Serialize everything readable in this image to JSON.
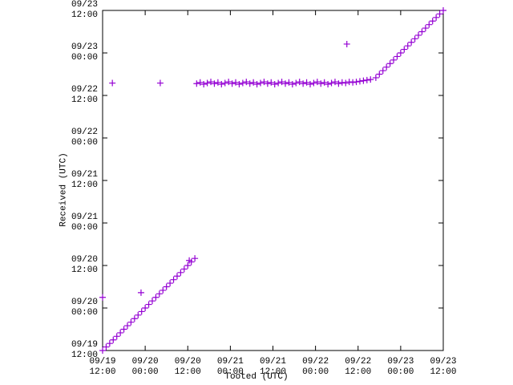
{
  "chart_data": {
    "type": "scatter",
    "x_label": "Tooted (UTC)",
    "y_label": "Received (UTC)",
    "color": "#9400d3",
    "xlim": [
      "09/19\n12:00",
      "09/23\n12:00"
    ],
    "ylim": [
      "09/19\n12:00",
      "09/23\n12:00"
    ],
    "xticks": [
      "09/19\n12:00",
      "09/20\n00:00",
      "09/20\n12:00",
      "09/21\n00:00",
      "09/21\n12:00",
      "09/22\n00:00",
      "09/22\n12:00",
      "09/23\n00:00",
      "09/23\n12:00"
    ],
    "yticks": [
      "09/19\n12:00",
      "09/20\n00:00",
      "09/20\n12:00",
      "09/21\n00:00",
      "09/21\n12:00",
      "09/22\n00:00",
      "09/22\n12:00",
      "09/23\n00:00",
      "09/23\n12:00"
    ],
    "x": [
      "09/19 12:00",
      "09/19 14:45",
      "09/20 04:15",
      "09/19 22:50",
      "09/22 08:50",
      "09/20 12:25",
      "09/19 12:00",
      "09/19 13:00",
      "09/19 14:00",
      "09/19 15:00",
      "09/19 16:00",
      "09/19 17:00",
      "09/19 18:00",
      "09/19 19:00",
      "09/19 20:00",
      "09/19 21:00",
      "09/19 22:00",
      "09/19 23:00",
      "09/20 00:00",
      "09/20 01:00",
      "09/20 02:00",
      "09/20 03:00",
      "09/20 04:00",
      "09/20 05:00",
      "09/20 06:00",
      "09/20 07:00",
      "09/20 08:00",
      "09/20 09:00",
      "09/20 10:00",
      "09/20 11:00",
      "09/20 12:00",
      "09/20 13:00",
      "09/20 14:00",
      "09/20 14:30",
      "09/20 15:30",
      "09/20 16:30",
      "09/20 17:30",
      "09/20 18:30",
      "09/20 19:30",
      "09/20 20:30",
      "09/20 21:30",
      "09/20 22:30",
      "09/20 23:30",
      "09/21 00:30",
      "09/21 01:30",
      "09/21 02:30",
      "09/21 03:30",
      "09/21 04:30",
      "09/21 05:30",
      "09/21 06:30",
      "09/21 07:30",
      "09/21 08:30",
      "09/21 09:30",
      "09/21 10:30",
      "09/21 11:30",
      "09/21 12:30",
      "09/21 13:30",
      "09/21 14:30",
      "09/21 15:30",
      "09/21 16:30",
      "09/21 17:30",
      "09/21 18:30",
      "09/21 19:30",
      "09/21 20:30",
      "09/21 21:30",
      "09/21 22:30",
      "09/21 23:30",
      "09/22 00:30",
      "09/22 01:30",
      "09/22 02:30",
      "09/22 03:30",
      "09/22 04:30",
      "09/22 05:30",
      "09/22 06:30",
      "09/22 07:30",
      "09/22 08:30",
      "09/22 09:30",
      "09/22 10:30",
      "09/22 11:30",
      "09/22 12:30",
      "09/22 13:30",
      "09/22 14:30",
      "09/22 15:30",
      "09/22 17:00",
      "09/22 18:00",
      "09/22 19:00",
      "09/22 20:00",
      "09/22 21:00",
      "09/22 22:00",
      "09/22 23:00",
      "09/23 00:00",
      "09/23 01:00",
      "09/23 02:00",
      "09/23 03:00",
      "09/23 04:00",
      "09/23 05:00",
      "09/23 06:00",
      "09/23 07:00",
      "09/23 08:00",
      "09/23 09:00",
      "09/23 10:00",
      "09/23 11:00",
      "09/23 12:00"
    ],
    "y": [
      "09/20 03:00",
      "09/22 15:30",
      "09/22 15:30",
      "09/20 04:20",
      "09/23 02:30",
      "09/20 13:25",
      "09/19 12:00",
      "09/19 13:00",
      "09/19 14:00",
      "09/19 15:00",
      "09/19 16:00",
      "09/19 17:00",
      "09/19 18:00",
      "09/19 19:00",
      "09/19 20:00",
      "09/19 21:00",
      "09/19 22:00",
      "09/19 23:00",
      "09/20 00:00",
      "09/20 01:00",
      "09/20 02:00",
      "09/20 03:00",
      "09/20 04:00",
      "09/20 05:00",
      "09/20 06:00",
      "09/20 07:00",
      "09/20 08:00",
      "09/20 09:00",
      "09/20 10:00",
      "09/20 11:00",
      "09/20 12:00",
      "09/20 13:00",
      "09/20 14:00",
      "09/22 15:20",
      "09/22 15:40",
      "09/22 15:10",
      "09/22 15:30",
      "09/22 15:50",
      "09/22 15:20",
      "09/22 15:40",
      "09/22 15:10",
      "09/22 15:30",
      "09/22 15:50",
      "09/22 15:20",
      "09/22 15:40",
      "09/22 15:10",
      "09/22 15:30",
      "09/22 15:50",
      "09/22 15:20",
      "09/22 15:40",
      "09/22 15:10",
      "09/22 15:30",
      "09/22 15:50",
      "09/22 15:20",
      "09/22 15:40",
      "09/22 15:10",
      "09/22 15:30",
      "09/22 15:50",
      "09/22 15:20",
      "09/22 15:40",
      "09/22 15:10",
      "09/22 15:30",
      "09/22 15:50",
      "09/22 15:20",
      "09/22 15:40",
      "09/22 15:10",
      "09/22 15:30",
      "09/22 15:50",
      "09/22 15:20",
      "09/22 15:40",
      "09/22 15:10",
      "09/22 15:30",
      "09/22 15:50",
      "09/22 15:20",
      "09/22 15:40",
      "09/22 15:30",
      "09/22 15:50",
      "09/22 15:40",
      "09/22 15:50",
      "09/22 16:00",
      "09/22 16:10",
      "09/22 16:20",
      "09/22 16:30",
      "09/22 17:00",
      "09/22 18:00",
      "09/22 19:00",
      "09/22 20:00",
      "09/22 21:00",
      "09/22 22:00",
      "09/22 23:00",
      "09/23 00:00",
      "09/23 01:00",
      "09/23 02:00",
      "09/23 03:00",
      "09/23 04:00",
      "09/23 05:00",
      "09/23 06:00",
      "09/23 07:00",
      "09/23 08:00",
      "09/23 09:00",
      "09/23 10:00",
      "09/23 11:00",
      "09/23 12:00"
    ]
  }
}
